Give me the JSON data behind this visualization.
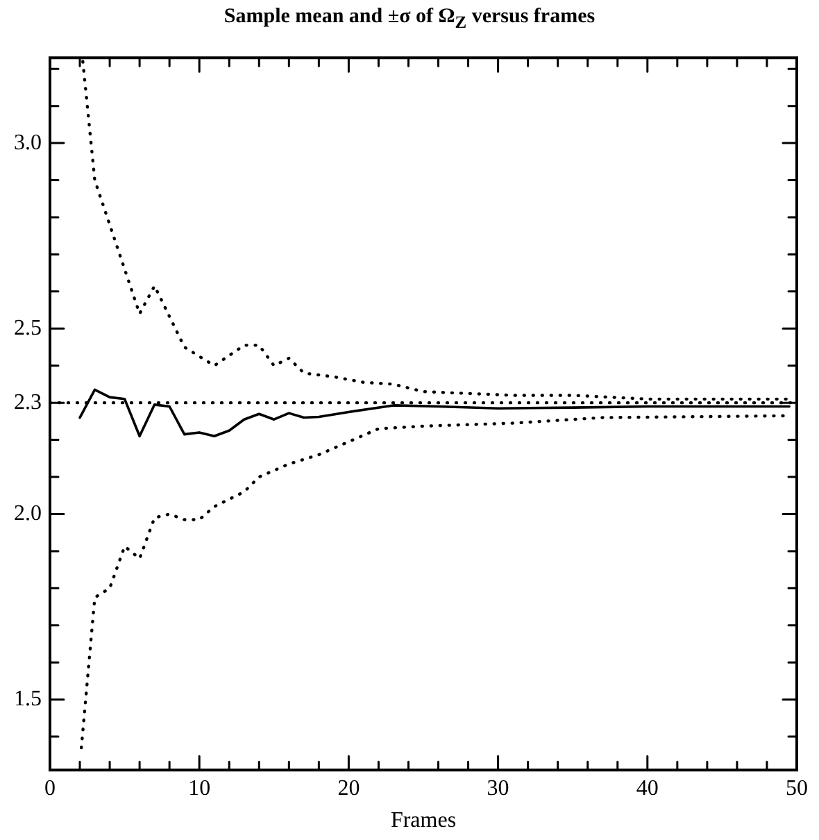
{
  "chart_data": {
    "type": "line",
    "title": "Sample mean and ±σ of Ω$_{Z}$ versus frames",
    "xlabel": "Frames",
    "xlim": [
      0,
      50
    ],
    "ylim": [
      1.31,
      3.23
    ],
    "xticks": [
      0,
      {
        "value": 2,
        "label": null
      },
      {
        "value": 4,
        "label": null
      },
      {
        "value": 6,
        "label": null
      },
      {
        "value": 8,
        "label": null
      },
      10,
      {
        "value": 12,
        "label": null
      },
      {
        "value": 14,
        "label": null
      },
      {
        "value": 16,
        "label": null
      },
      {
        "value": 18,
        "label": null
      },
      20,
      {
        "value": 22,
        "label": null
      },
      {
        "value": 24,
        "label": null
      },
      {
        "value": 26,
        "label": null
      },
      {
        "value": 28,
        "label": null
      },
      30,
      {
        "value": 32,
        "label": null
      },
      {
        "value": 34,
        "label": null
      },
      {
        "value": 36,
        "label": null
      },
      {
        "value": 38,
        "label": null
      },
      40,
      {
        "value": 42,
        "label": null
      },
      {
        "value": 44,
        "label": null
      },
      {
        "value": 46,
        "label": null
      },
      {
        "value": 48,
        "label": null
      },
      50
    ],
    "yticks": [
      {
        "value": 1.4,
        "label": null
      },
      {
        "value": 1.5,
        "label": "1.5"
      },
      {
        "value": 1.6,
        "label": null
      },
      {
        "value": 1.7,
        "label": null
      },
      {
        "value": 1.8,
        "label": null
      },
      {
        "value": 1.9,
        "label": null
      },
      {
        "value": 2.0,
        "label": "2.0"
      },
      {
        "value": 2.1,
        "label": null
      },
      {
        "value": 2.2,
        "label": null
      },
      {
        "value": 2.3,
        "label": "2.3"
      },
      {
        "value": 2.4,
        "label": null
      },
      {
        "value": 2.5,
        "label": "2.5"
      },
      {
        "value": 2.6,
        "label": null
      },
      {
        "value": 2.7,
        "label": null
      },
      {
        "value": 2.8,
        "label": null
      },
      {
        "value": 2.9,
        "label": null
      },
      {
        "value": 3.0,
        "label": "3.0"
      },
      {
        "value": 3.1,
        "label": null
      },
      {
        "value": 3.2,
        "label": null
      }
    ],
    "ref_lines": [
      {
        "axis": "y",
        "value": 2.3,
        "color": "#000000",
        "line_style": "dotted"
      }
    ],
    "series": [
      {
        "color": "#000000",
        "line_style": "dotted",
        "x": [
          2.2,
          3,
          6,
          7,
          9,
          11,
          13,
          14,
          15,
          16,
          17,
          19,
          21,
          23,
          25,
          28,
          31,
          35,
          40,
          49.5
        ],
        "values": [
          3.22,
          2.9,
          2.54,
          2.615,
          2.45,
          2.4,
          2.455,
          2.455,
          2.4,
          2.42,
          2.38,
          2.37,
          2.355,
          2.35,
          2.33,
          2.325,
          2.32,
          2.32,
          2.31,
          2.31
        ]
      },
      {
        "color": "#000000",
        "line_style": "solid",
        "x": [
          2,
          3,
          4,
          5,
          6,
          7,
          8,
          9,
          10,
          11,
          12,
          13,
          14,
          15,
          16,
          17,
          18,
          20,
          23,
          26,
          30,
          35,
          40,
          49.5
        ],
        "values": [
          2.26,
          2.335,
          2.315,
          2.31,
          2.21,
          2.295,
          2.29,
          2.215,
          2.22,
          2.21,
          2.225,
          2.255,
          2.27,
          2.255,
          2.272,
          2.26,
          2.262,
          2.275,
          2.293,
          2.29,
          2.285,
          2.287,
          2.29,
          2.29
        ]
      },
      {
        "color": "#000000",
        "line_style": "dotted",
        "x": [
          2.1,
          3,
          4,
          5,
          6,
          7,
          8,
          9,
          10,
          11,
          13,
          14,
          16,
          18,
          20,
          22,
          25,
          31,
          37,
          49.5
        ],
        "values": [
          1.37,
          1.775,
          1.8,
          1.913,
          1.88,
          1.99,
          2.0,
          1.985,
          1.985,
          2.02,
          2.06,
          2.1,
          2.135,
          2.16,
          2.195,
          2.23,
          2.237,
          2.245,
          2.26,
          2.265
        ]
      }
    ]
  }
}
